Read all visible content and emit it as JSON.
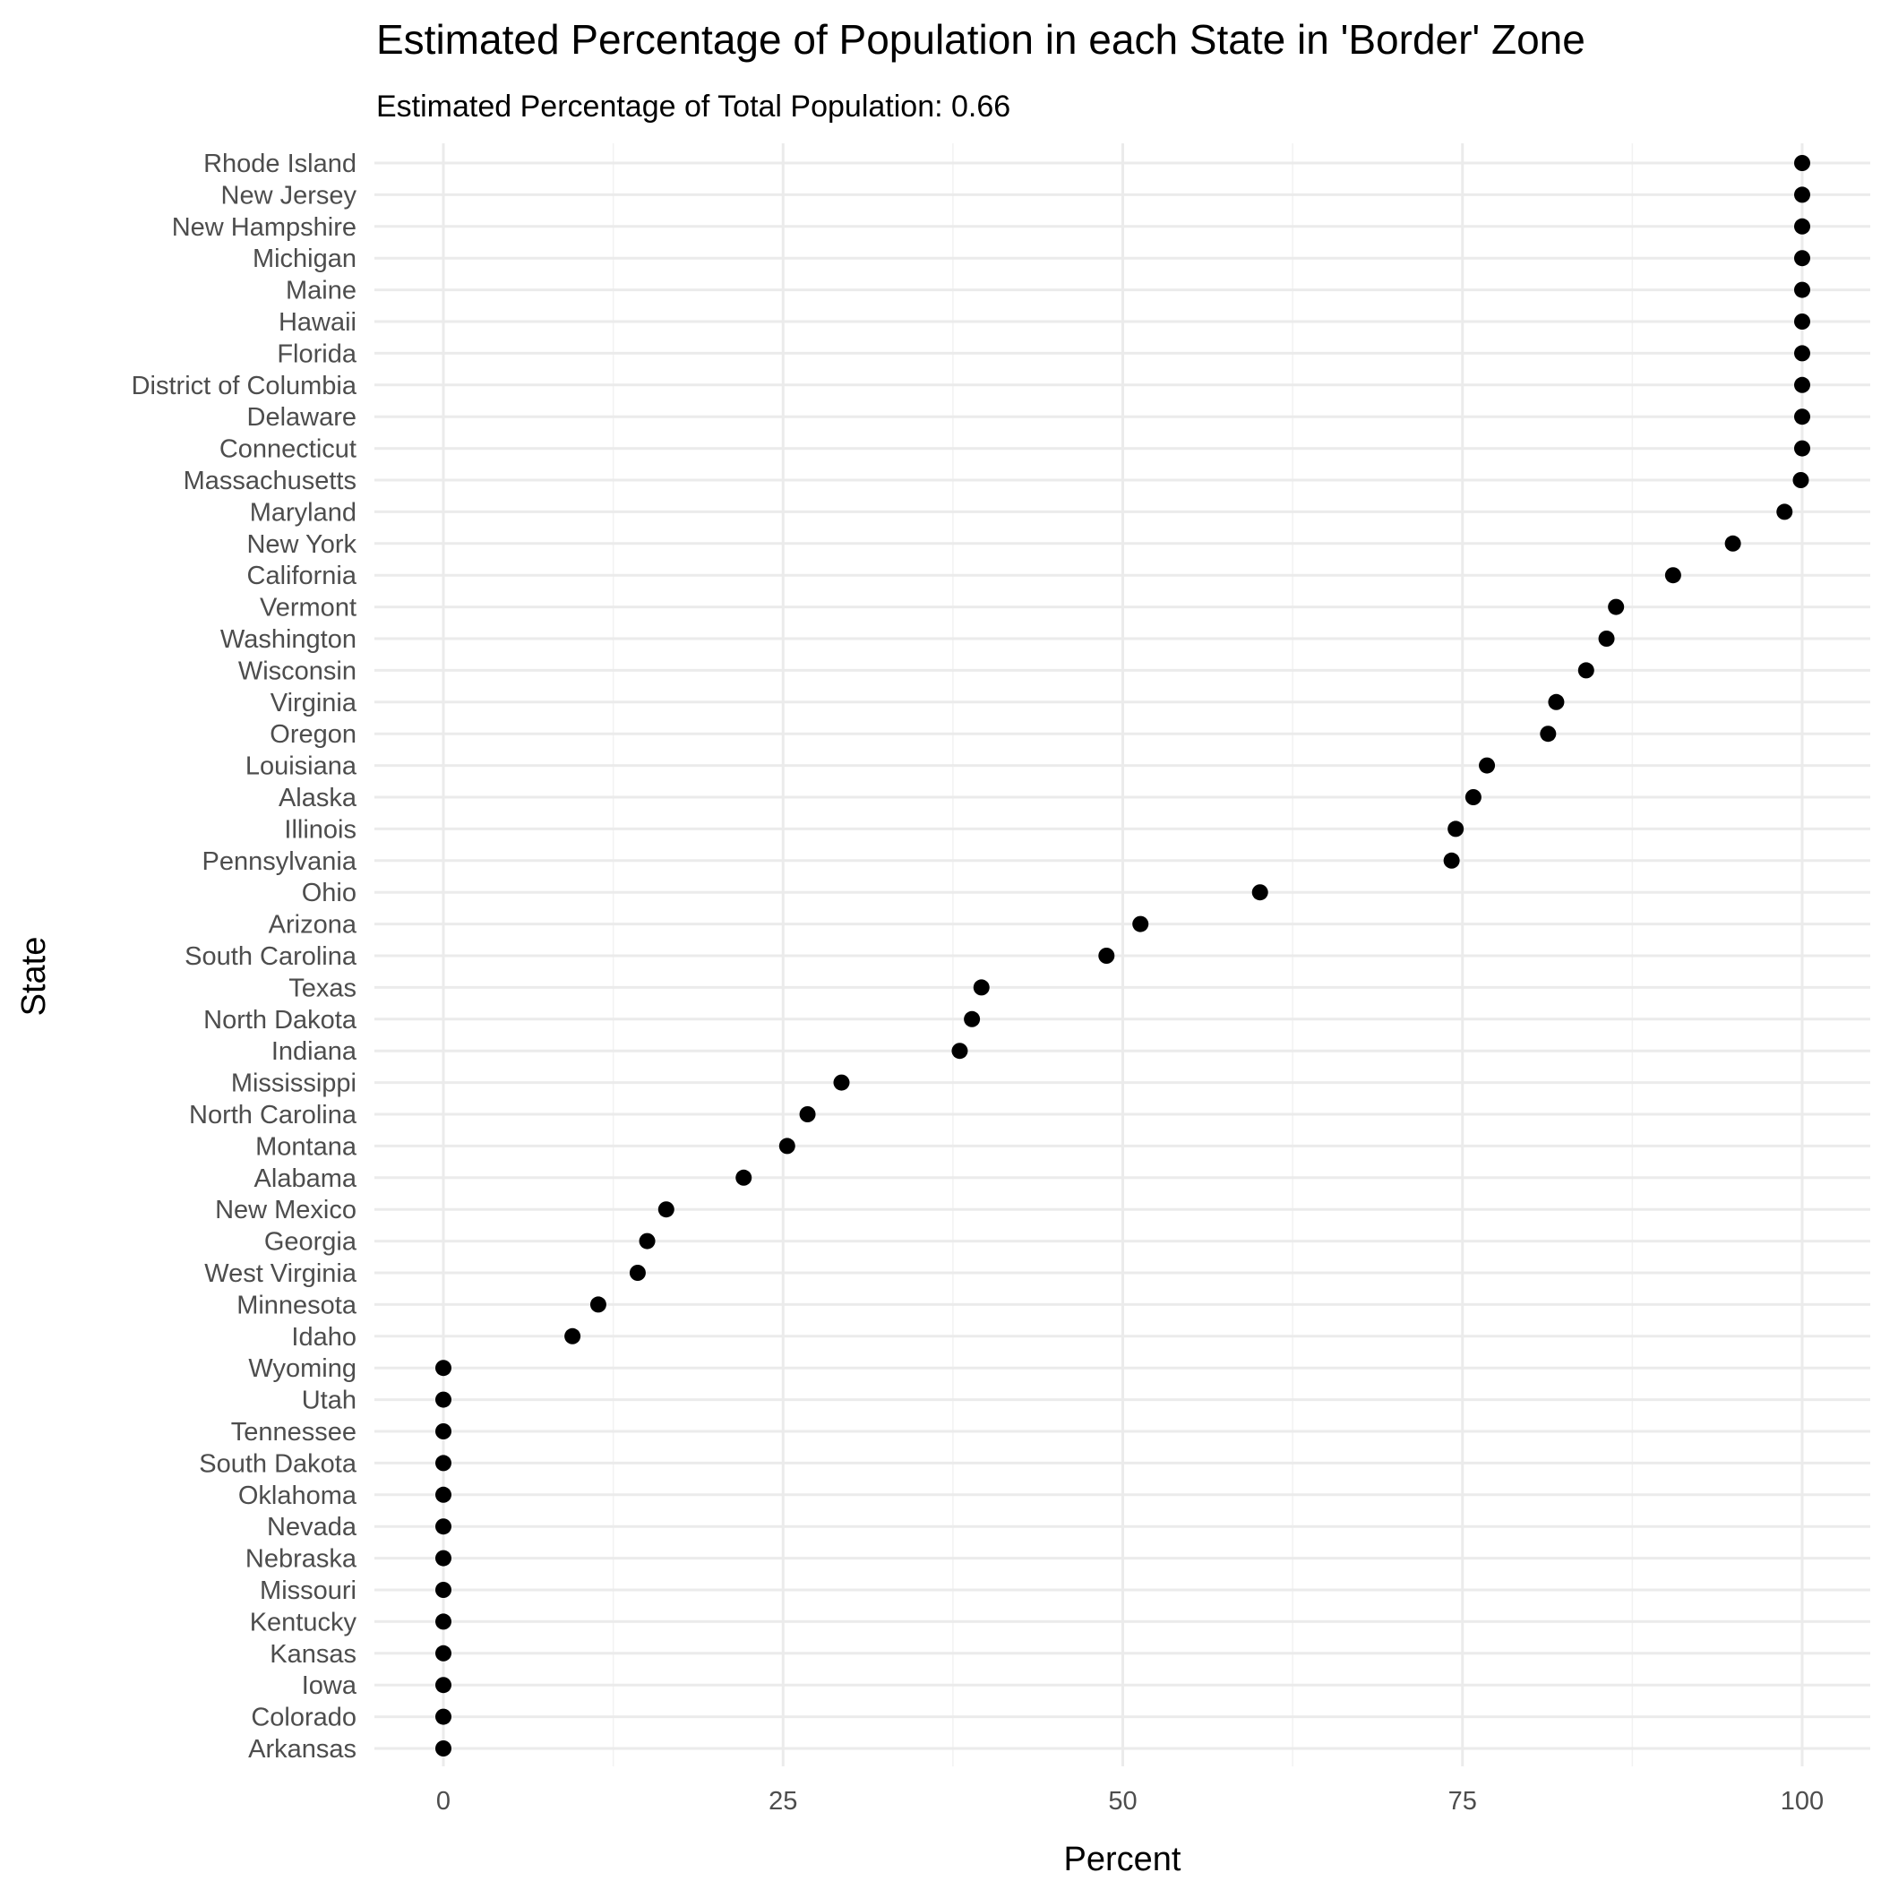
{
  "chart_data": {
    "type": "scatter",
    "title": "Estimated Percentage of Population in each State in 'Border' Zone",
    "subtitle": "Estimated Percentage of Total Population: 0.66",
    "xlabel": "Percent",
    "ylabel": "State",
    "xlim": [
      -2.5,
      105
    ],
    "xticks": [
      0,
      25,
      50,
      75,
      100
    ],
    "grid": true,
    "point_color": "#000000",
    "points": [
      {
        "state": "Rhode Island",
        "value": 100
      },
      {
        "state": "New Jersey",
        "value": 100
      },
      {
        "state": "New Hampshire",
        "value": 100
      },
      {
        "state": "Michigan",
        "value": 100
      },
      {
        "state": "Maine",
        "value": 100
      },
      {
        "state": "Hawaii",
        "value": 100
      },
      {
        "state": "Florida",
        "value": 100
      },
      {
        "state": "District of Columbia",
        "value": 100
      },
      {
        "state": "Delaware",
        "value": 100
      },
      {
        "state": "Connecticut",
        "value": 100
      },
      {
        "state": "Massachusetts",
        "value": 99.9
      },
      {
        "state": "Maryland",
        "value": 98.7
      },
      {
        "state": "New York",
        "value": 94.9
      },
      {
        "state": "California",
        "value": 90.5
      },
      {
        "state": "Vermont",
        "value": 86.3
      },
      {
        "state": "Washington",
        "value": 85.6
      },
      {
        "state": "Wisconsin",
        "value": 84.1
      },
      {
        "state": "Virginia",
        "value": 81.9
      },
      {
        "state": "Oregon",
        "value": 81.3
      },
      {
        "state": "Louisiana",
        "value": 76.8
      },
      {
        "state": "Alaska",
        "value": 75.8
      },
      {
        "state": "Illinois",
        "value": 74.5
      },
      {
        "state": "Pennsylvania",
        "value": 74.2
      },
      {
        "state": "Ohio",
        "value": 60.1
      },
      {
        "state": "Arizona",
        "value": 51.3
      },
      {
        "state": "South Carolina",
        "value": 48.8
      },
      {
        "state": "Texas",
        "value": 39.6
      },
      {
        "state": "North Dakota",
        "value": 38.9
      },
      {
        "state": "Indiana",
        "value": 38.0
      },
      {
        "state": "Mississippi",
        "value": 29.3
      },
      {
        "state": "North Carolina",
        "value": 26.8
      },
      {
        "state": "Montana",
        "value": 25.3
      },
      {
        "state": "Alabama",
        "value": 22.1
      },
      {
        "state": "New Mexico",
        "value": 16.4
      },
      {
        "state": "Georgia",
        "value": 15.0
      },
      {
        "state": "West Virginia",
        "value": 14.3
      },
      {
        "state": "Minnesota",
        "value": 11.4
      },
      {
        "state": "Idaho",
        "value": 9.5
      },
      {
        "state": "Wyoming",
        "value": 0
      },
      {
        "state": "Utah",
        "value": 0
      },
      {
        "state": "Tennessee",
        "value": 0
      },
      {
        "state": "South Dakota",
        "value": 0
      },
      {
        "state": "Oklahoma",
        "value": 0
      },
      {
        "state": "Nevada",
        "value": 0
      },
      {
        "state": "Nebraska",
        "value": 0
      },
      {
        "state": "Missouri",
        "value": 0
      },
      {
        "state": "Kentucky",
        "value": 0
      },
      {
        "state": "Kansas",
        "value": 0
      },
      {
        "state": "Iowa",
        "value": 0
      },
      {
        "state": "Colorado",
        "value": 0
      },
      {
        "state": "Arkansas",
        "value": 0
      }
    ]
  }
}
